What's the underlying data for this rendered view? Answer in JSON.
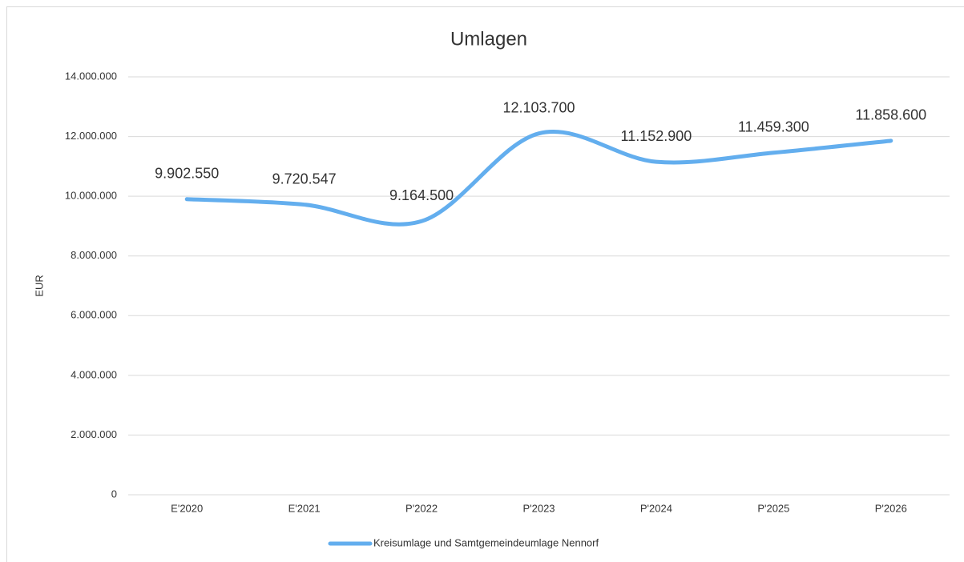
{
  "chart_data": {
    "type": "line",
    "title": "Umlagen",
    "y_label": "EUR",
    "categories": [
      "E'2020",
      "E'2021",
      "P'2022",
      "P'2023",
      "P'2024",
      "P'2025",
      "P'2026"
    ],
    "series": [
      {
        "name": "Kreisumlage und Samtgemeindeumlage Nennorf",
        "color": "#63aeee",
        "values": [
          9902550,
          9720547,
          9164500,
          12103700,
          11152900,
          11459300,
          11858600
        ],
        "value_labels": [
          "9.902.550",
          "9.720.547",
          "9.164.500",
          "12.103.700",
          "11.152.900",
          "11.459.300",
          "11.858.600"
        ]
      }
    ],
    "ylim": [
      0,
      14000000
    ],
    "yticks": [
      0,
      {
        "value": 2000000,
        "label": "2.000.000"
      },
      {
        "value": 4000000,
        "label": "4.000.000"
      },
      {
        "value": 6000000,
        "label": "6.000.000"
      },
      {
        "value": 8000000,
        "label": "8.000.000"
      },
      {
        "value": 10000000,
        "label": "10.000.000"
      },
      {
        "value": 12000000,
        "label": "12.000.000"
      },
      {
        "value": 14000000,
        "label": "14.000.000"
      }
    ],
    "grid": true,
    "smooth": true,
    "legend": "bottom"
  }
}
